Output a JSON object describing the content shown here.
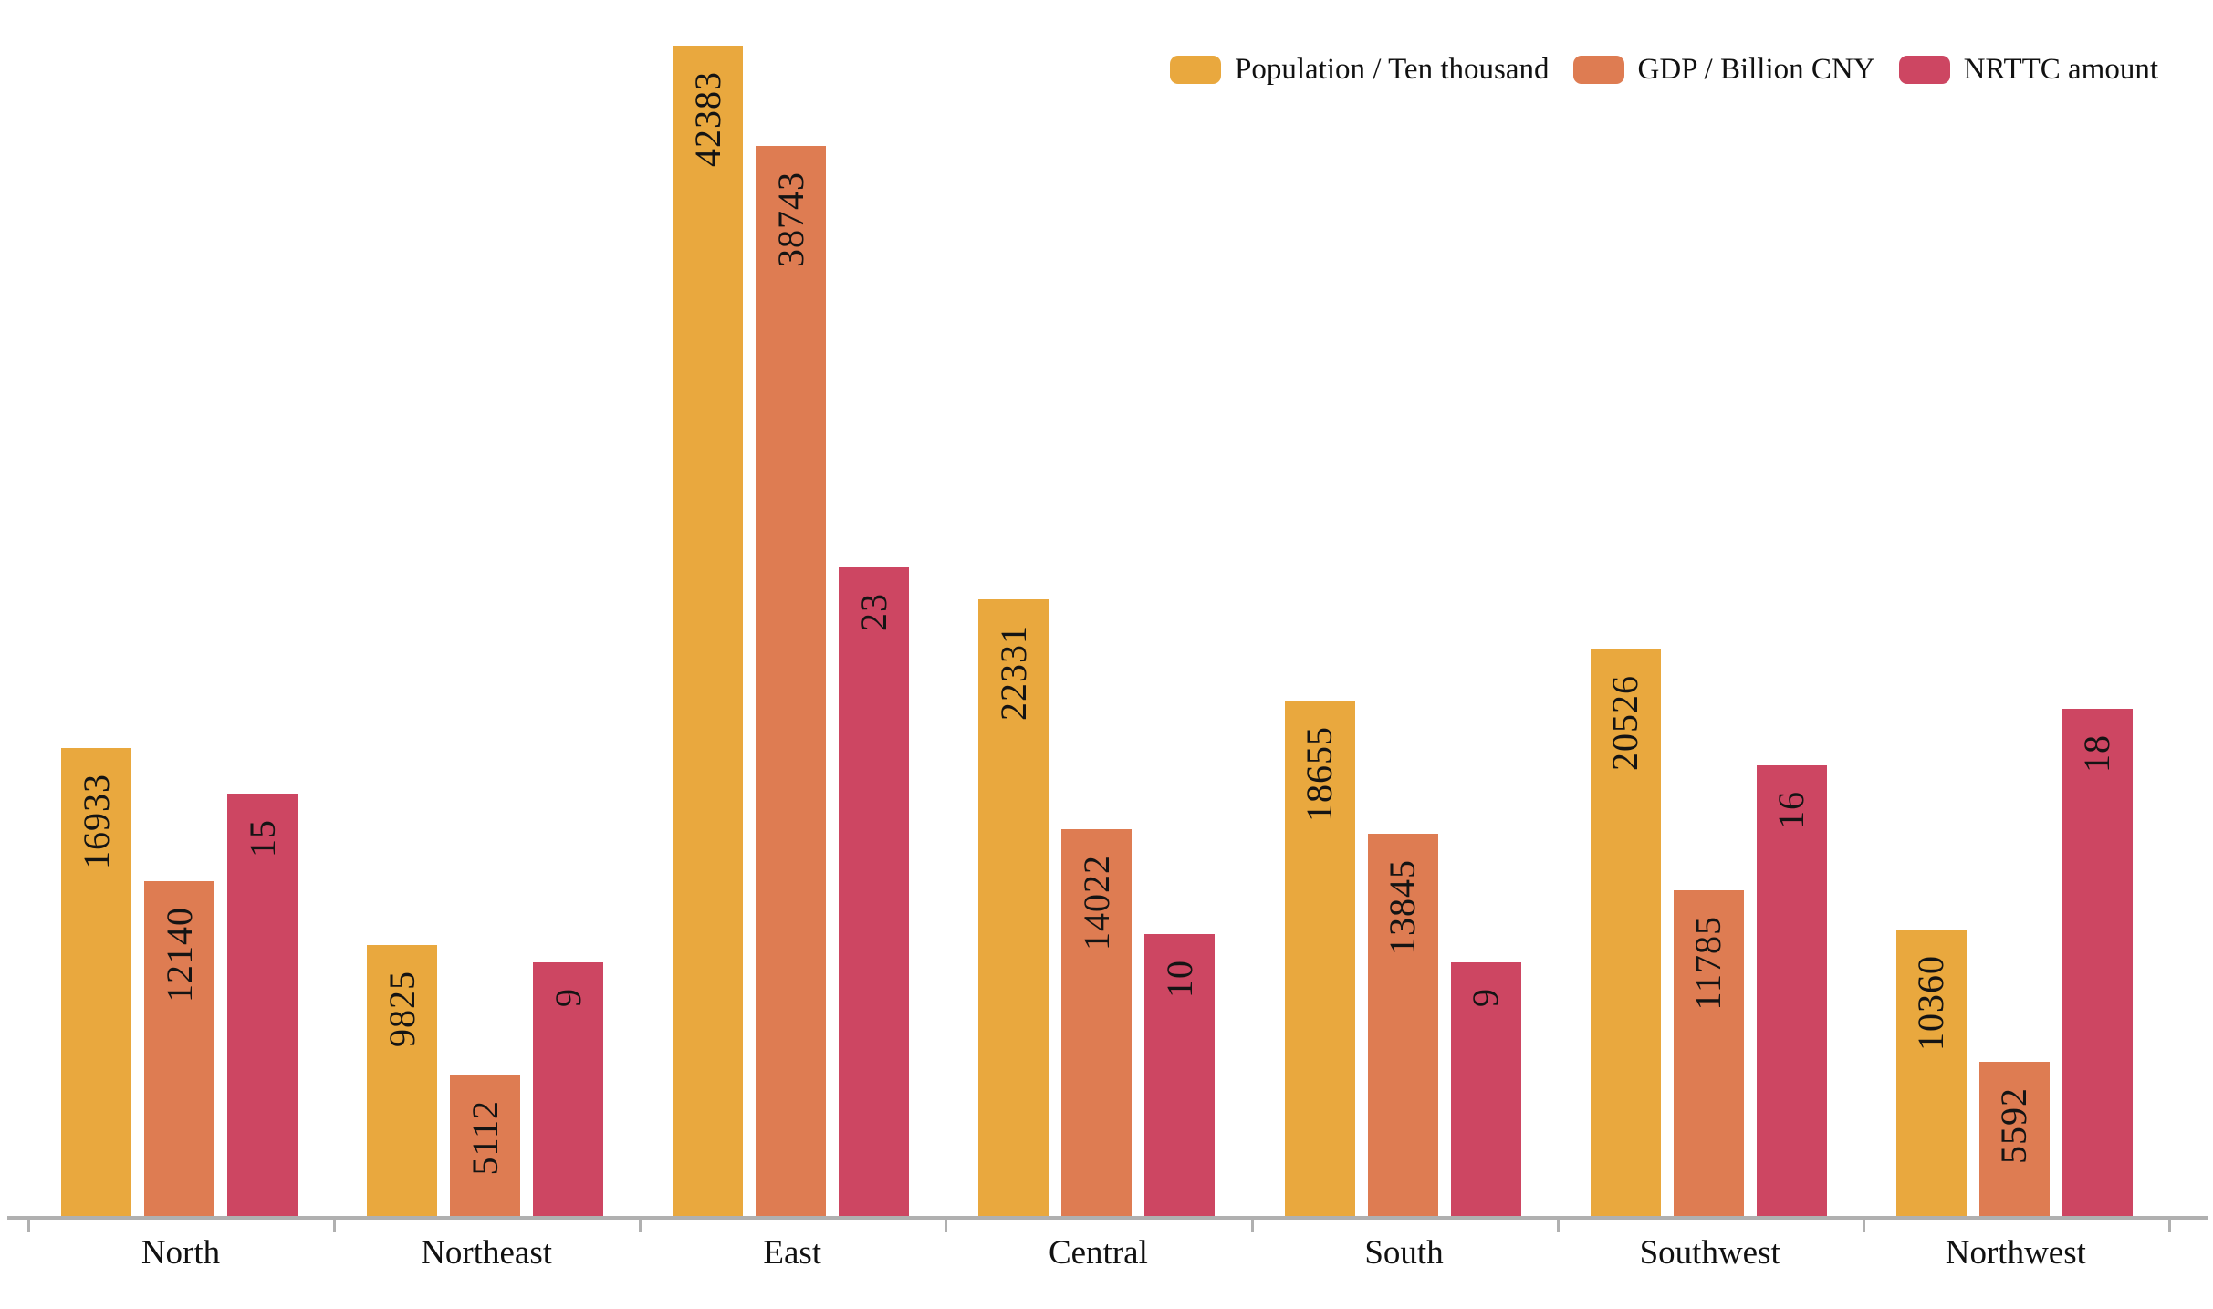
{
  "legend": {
    "items": [
      {
        "label": "Population / Ten thousand",
        "color": "#E9A83E"
      },
      {
        "label": "GDP / Billion CNY",
        "color": "#DE7C52"
      },
      {
        "label": "NRTTC amount",
        "color": "#CD4662"
      }
    ]
  },
  "chart_data": {
    "type": "bar",
    "title": "",
    "xlabel": "",
    "ylabel": "",
    "categories": [
      "North",
      "Northeast",
      "East",
      "Central",
      "South",
      "Southwest",
      "Northwest"
    ],
    "series": [
      {
        "name": "Population / Ten thousand",
        "axis": "primary",
        "color": "#E9A83E",
        "values": [
          16933,
          9825,
          42383,
          22331,
          18655,
          20526,
          10360
        ]
      },
      {
        "name": "GDP / Billion CNY",
        "axis": "primary",
        "color": "#DE7C52",
        "values": [
          12140,
          5112,
          38743,
          14022,
          13845,
          11785,
          5592
        ]
      },
      {
        "name": "NRTTC amount",
        "axis": "secondary",
        "color": "#CD4662",
        "values": [
          15,
          9,
          23,
          10,
          9,
          16,
          18
        ]
      }
    ],
    "primary_axis": {
      "min": 0,
      "max": 42383,
      "visible": false
    },
    "secondary_axis": {
      "min": 0,
      "max": 23,
      "visible": false
    },
    "grid": false,
    "legend_position": "top-right",
    "bar_value_labels": "inside-top, rotated 90° counterclockwise (read bottom-up)",
    "x_axis_line_color": "#B0B0B0",
    "x_axis_tick_color": "#B0B0B0",
    "label_text_color": "#141414"
  }
}
